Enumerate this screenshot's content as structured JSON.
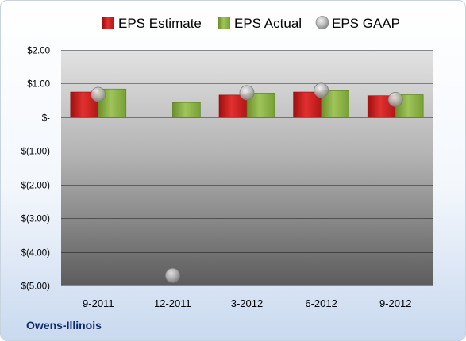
{
  "company": "Owens-Illinois",
  "chart_data": {
    "type": "bar",
    "categories": [
      "9-2011",
      "12-2011",
      "3-2012",
      "6-2012",
      "9-2012"
    ],
    "series": [
      {
        "name": "EPS Estimate",
        "kind": "bar",
        "color": "#d42020",
        "values": [
          0.75,
          null,
          0.66,
          0.75,
          0.64
        ]
      },
      {
        "name": "EPS Actual",
        "kind": "bar",
        "color": "#8db34a",
        "values": [
          0.84,
          0.44,
          0.72,
          0.79,
          0.67
        ]
      },
      {
        "name": "EPS GAAP",
        "kind": "scatter",
        "color": "#b8b8b8",
        "values": [
          0.68,
          -4.7,
          0.73,
          0.8,
          0.53
        ]
      }
    ],
    "ylim": [
      -5,
      2
    ],
    "yticks": [
      2,
      1,
      0,
      -1,
      -2,
      -3,
      -4,
      -5
    ],
    "ytick_labels": [
      "$2.00",
      "$1.00",
      "$-",
      "$(1.00)",
      "$(2.00)",
      "$(3.00)",
      "$(4.00)",
      "$(5.00)"
    ],
    "legend_position": "top",
    "grid": true
  }
}
